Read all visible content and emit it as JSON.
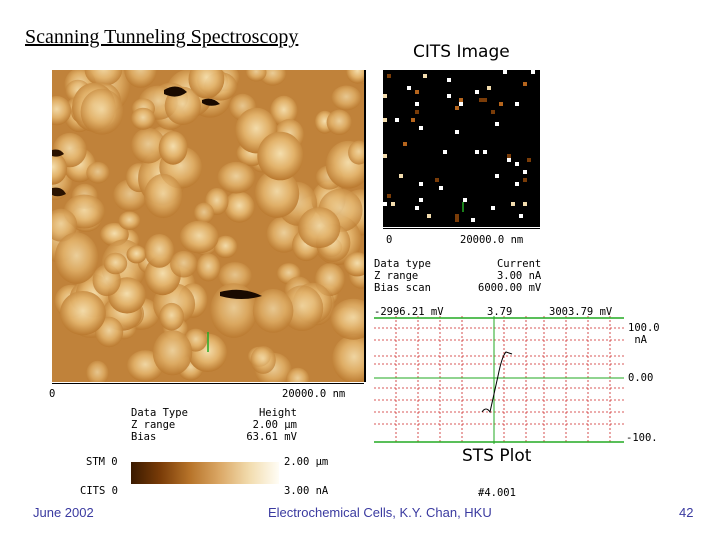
{
  "slide": {
    "title": "Scanning Tunneling Spectroscopy",
    "footer_left": "June 2002",
    "footer_center": "Electrochemical Cells,   K.Y. Chan,   HKU",
    "page_number": "42"
  },
  "stm_panel": {
    "axis_start": "0",
    "axis_end": "20000.0 nm",
    "info_labels": "Data Type\nZ range\nBias",
    "info_values": "   Height\n  2.00 µm\n 63.61 mV",
    "colorbar_row1_label": "STM 0",
    "colorbar_row1_value": "2.00 µm",
    "colorbar_row2_label": "CITS 0",
    "colorbar_row2_value": "3.00 nA"
  },
  "cits_panel": {
    "title": "CITS  Image",
    "axis_start": "0",
    "axis_end": "20000.0 nm",
    "info_labels": "Data type\nZ range\nBias scan",
    "info_values": "   Current\n   3.00 nA\n6000.00 mV"
  },
  "sts_plot": {
    "title": "STS  Plot",
    "x_left": "-2996.21 mV",
    "x_mid": "3.79",
    "x_right": "3003.79 mV",
    "y_top": "100.0\n nA",
    "y_mid": "0.00",
    "y_bottom": "-100.",
    "footnote": "#4.001"
  },
  "colors": {
    "stm_base": "#c98a3a",
    "grid_red": "#cc2222",
    "grid_green": "#22aa22",
    "footer_text": "#3a3aa0"
  }
}
